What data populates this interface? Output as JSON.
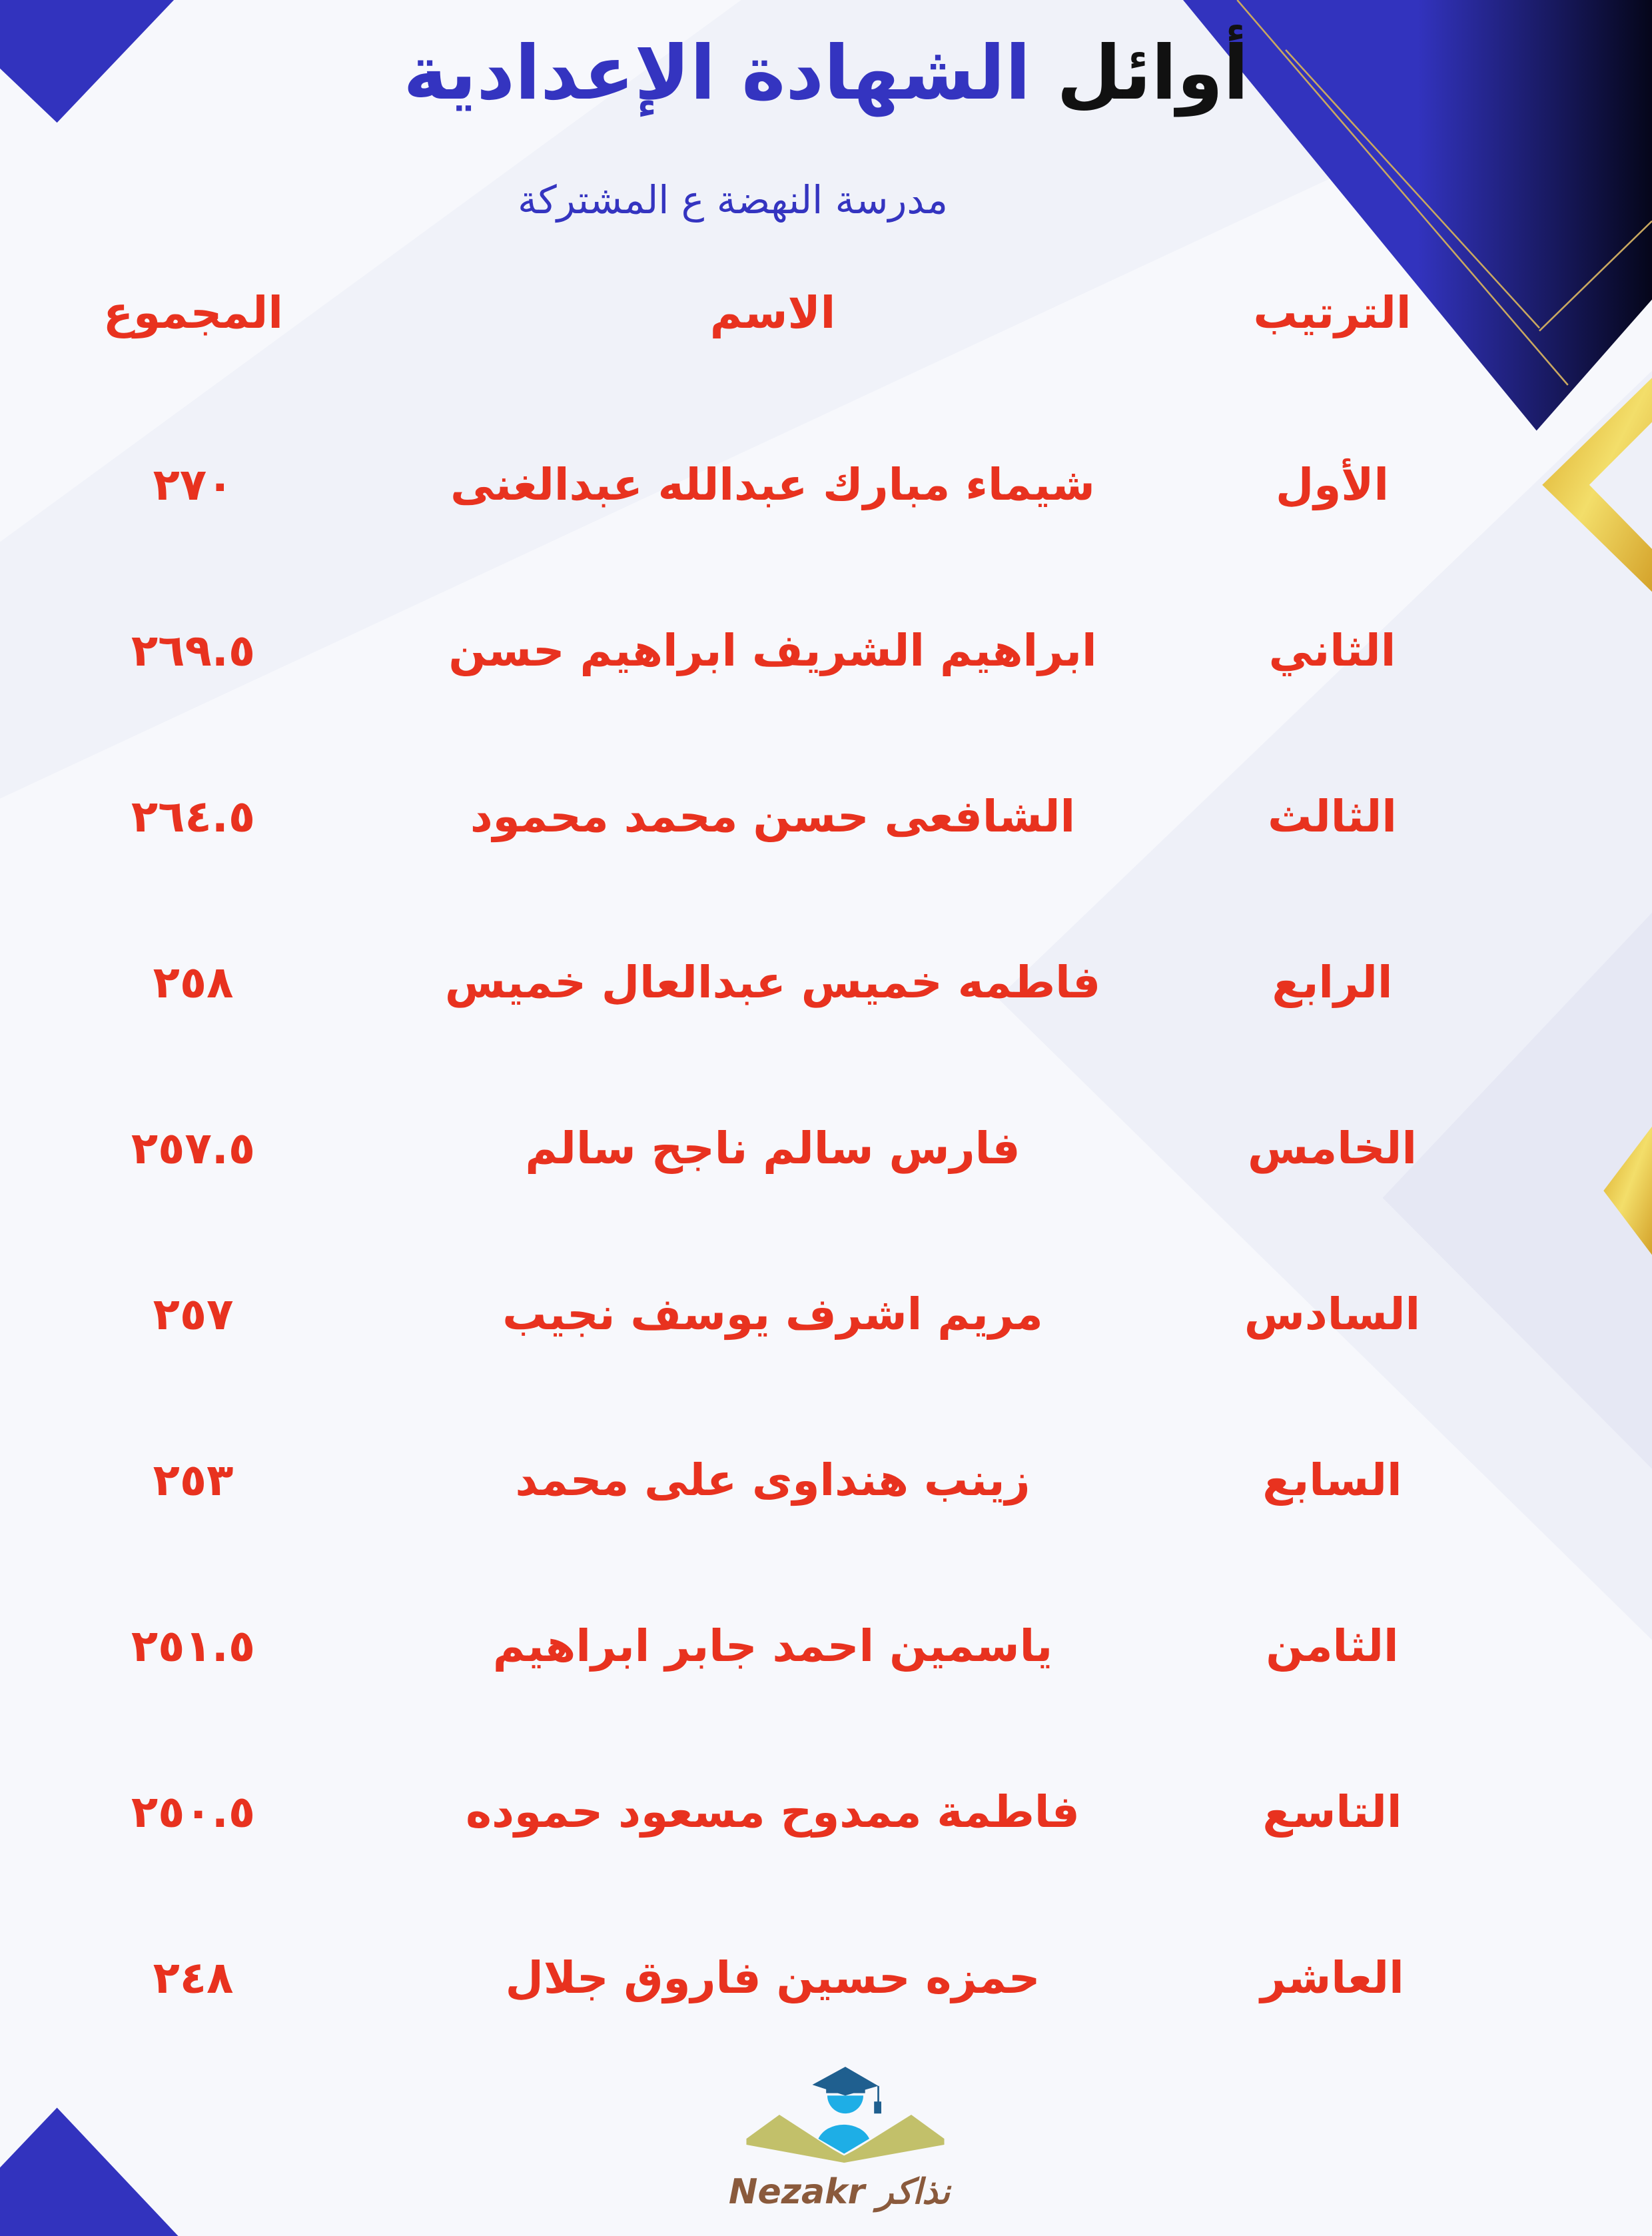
{
  "header": {
    "title_part1": "أوائل",
    "title_part2": "الشهادة الإعدادية",
    "subtitle": "مدرسة النهضة ع المشتركة"
  },
  "table": {
    "columns": [
      "الترتيب",
      "الاسم",
      "المجموع"
    ],
    "rows": [
      {
        "rank": "الأول",
        "name": "شيماء مبارك عبدالله عبدالغنى",
        "total": "٢٧٠"
      },
      {
        "rank": "الثاني",
        "name": "ابراهيم الشريف ابراهيم حسن",
        "total": "٢٦٩.٥"
      },
      {
        "rank": "الثالث",
        "name": "الشافعى حسن محمد محمود",
        "total": "٢٦٤.٥"
      },
      {
        "rank": "الرابع",
        "name": "فاطمه خميس عبدالعال خميس",
        "total": "٢٥٨"
      },
      {
        "rank": "الخامس",
        "name": "فارس سالم ناجح سالم",
        "total": "٢٥٧.٥"
      },
      {
        "rank": "السادس",
        "name": "مريم اشرف يوسف نجيب",
        "total": "٢٥٧"
      },
      {
        "rank": "السابع",
        "name": "زينب هنداوى على محمد",
        "total": "٢٥٣"
      },
      {
        "rank": "الثامن",
        "name": "ياسمين احمد جابر ابراهيم",
        "total": "٢٥١.٥"
      },
      {
        "rank": "التاسع",
        "name": "فاطمة ممدوح مسعود حموده",
        "total": "٢٥٠.٥"
      },
      {
        "rank": "العاشر",
        "name": "حمزه حسين فاروق جلال",
        "total": "٢٤٨"
      }
    ]
  },
  "logo": {
    "text": "Nezakr نذاكر"
  },
  "colors": {
    "accent_blue": "#3434c0",
    "text_red": "#e8321f",
    "gold": "#e8c43a"
  }
}
